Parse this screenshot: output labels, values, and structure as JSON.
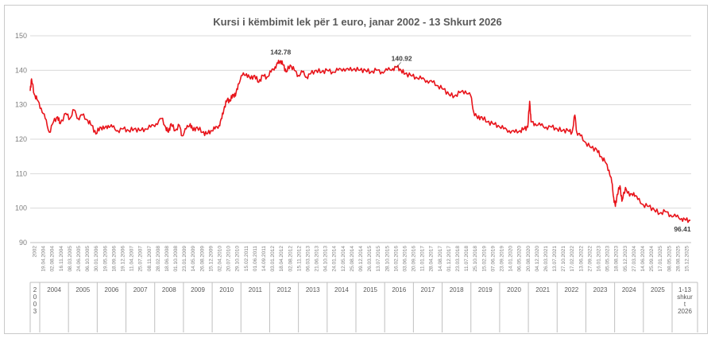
{
  "chart_data": {
    "type": "line",
    "title": "Kursi i këmbimit lek për 1 euro, janar 2002 - 13 Shkurt 2026",
    "xlabel": "",
    "ylabel": "",
    "ylim": [
      90,
      150
    ],
    "yticks": [
      90,
      100,
      110,
      120,
      130,
      140,
      150
    ],
    "grid": true,
    "series_color": "#e8141b",
    "x_tick_labels": [
      "2002",
      "19.04.2004",
      "02.08.2004",
      "16.11.2004",
      "08.03.2005",
      "24.06.2005",
      "06.10.2005",
      "30.01.2006",
      "19.05.2006",
      "18.09.2006",
      "19.12.2006",
      "11.04.2007",
      "25.07.2007",
      "08.11.2007",
      "28.02.2008",
      "18.06.2008",
      "01.10.2008",
      "23.01.2009",
      "14.05.2009",
      "26.08.2009",
      "15.12.2009",
      "02.04.2010",
      "20.07.2010",
      "29.10.2010",
      "15.02.2011",
      "01.06.2011",
      "14.09.2011",
      "03.01.2012",
      "18.04.2012",
      "02.08.2012",
      "15.11.2012",
      "06.03.2013",
      "21.06.2013",
      "04.10.2013",
      "24.01.2014",
      "12.05.2014",
      "25.08.2014",
      "09.12.2014",
      "26.03.2015",
      "13.07.2015",
      "28.10.2015",
      "16.02.2016",
      "03.06.2016",
      "20.09.2016",
      "11.01.2017",
      "28.04.2017",
      "14.08.2017",
      "01.12.2017",
      "23.03.2018",
      "11.07.2018",
      "25.10.2018",
      "15.02.2019",
      "07.06.2019",
      "23.09.2019",
      "14.01.2020",
      "06.05.2020",
      "20.08.2020",
      "04.12.2020",
      "26.03.2021",
      "13.07.2021",
      "27.10.2021",
      "17.02.2022",
      "13.06.2022",
      "27.09.2022",
      "16.01.2023",
      "05.05.2023",
      "18.08.2023",
      "05.12.2023",
      "27.03.2024",
      "14.06.2024",
      "25.09.2024",
      "17.01.2025",
      "08.05.2025",
      "28.08.2025",
      "15.12.2025"
    ],
    "year_groups": [
      "2\n0\n0\n3",
      "2004",
      "2005",
      "2006",
      "2007",
      "2008",
      "2009",
      "2010",
      "2011",
      "2012",
      "2013",
      "2014",
      "2015",
      "2016",
      "2017",
      "2018",
      "2019",
      "2020",
      "2021",
      "2022",
      "2023",
      "2024",
      "2025",
      "1-13\nshkur\nt\n2026"
    ],
    "annotations": [
      {
        "text": "142.78",
        "x": "2011",
        "y": 142.78
      },
      {
        "text": "140.92",
        "x": "2015",
        "y": 140.92
      },
      {
        "text": "96.41",
        "x": "2026",
        "y": 96.41
      }
    ],
    "series": [
      {
        "name": "",
        "points": [
          [
            2002.0,
            134.0
          ],
          [
            2002.05,
            137.5
          ],
          [
            2002.15,
            133.0
          ],
          [
            2002.25,
            131.5
          ],
          [
            2002.4,
            129.0
          ],
          [
            2002.55,
            126.0
          ],
          [
            2002.7,
            122.0
          ],
          [
            2002.85,
            125.0
          ],
          [
            2003.0,
            126.5
          ],
          [
            2003.1,
            124.5
          ],
          [
            2003.3,
            127.5
          ],
          [
            2003.45,
            126.0
          ],
          [
            2003.6,
            128.5
          ],
          [
            2003.75,
            126.0
          ],
          [
            2003.9,
            127.0
          ],
          [
            2004.1,
            125.5
          ],
          [
            2004.25,
            124.0
          ],
          [
            2004.4,
            121.5
          ],
          [
            2004.55,
            123.5
          ],
          [
            2004.7,
            123.0
          ],
          [
            2004.85,
            124.0
          ],
          [
            2005.0,
            123.5
          ],
          [
            2005.2,
            122.5
          ],
          [
            2005.4,
            123.0
          ],
          [
            2005.6,
            122.5
          ],
          [
            2005.8,
            123.0
          ],
          [
            2006.0,
            122.5
          ],
          [
            2006.2,
            123.0
          ],
          [
            2006.4,
            123.5
          ],
          [
            2006.6,
            124.5
          ],
          [
            2006.8,
            126.0
          ],
          [
            2006.95,
            123.5
          ],
          [
            2007.05,
            122.0
          ],
          [
            2007.15,
            124.5
          ],
          [
            2007.3,
            122.5
          ],
          [
            2007.45,
            124.0
          ],
          [
            2007.55,
            121.0
          ],
          [
            2007.7,
            123.0
          ],
          [
            2007.85,
            124.5
          ],
          [
            2007.95,
            122.5
          ],
          [
            2008.1,
            123.5
          ],
          [
            2008.3,
            122.0
          ],
          [
            2008.45,
            121.5
          ],
          [
            2008.6,
            122.5
          ],
          [
            2008.75,
            123.0
          ],
          [
            2008.9,
            124.0
          ],
          [
            2009.0,
            126.0
          ],
          [
            2009.1,
            129.5
          ],
          [
            2009.2,
            131.5
          ],
          [
            2009.3,
            131.0
          ],
          [
            2009.4,
            133.0
          ],
          [
            2009.5,
            132.5
          ],
          [
            2009.6,
            136.0
          ],
          [
            2009.75,
            138.5
          ],
          [
            2009.9,
            139.0
          ],
          [
            2010.05,
            137.5
          ],
          [
            2010.2,
            138.5
          ],
          [
            2010.35,
            136.5
          ],
          [
            2010.5,
            138.5
          ],
          [
            2010.65,
            138.0
          ],
          [
            2010.8,
            139.5
          ],
          [
            2010.95,
            141.0
          ],
          [
            2011.05,
            142.0
          ],
          [
            2011.15,
            142.78
          ],
          [
            2011.25,
            141.5
          ],
          [
            2011.35,
            139.5
          ],
          [
            2011.5,
            141.5
          ],
          [
            2011.65,
            140.0
          ],
          [
            2011.8,
            138.5
          ],
          [
            2011.95,
            139.5
          ],
          [
            2012.1,
            138.0
          ],
          [
            2012.25,
            139.0
          ],
          [
            2012.45,
            140.0
          ],
          [
            2012.65,
            139.5
          ],
          [
            2012.85,
            140.0
          ],
          [
            2013.05,
            139.5
          ],
          [
            2013.25,
            140.0
          ],
          [
            2013.45,
            140.5
          ],
          [
            2013.65,
            140.0
          ],
          [
            2013.85,
            140.5
          ],
          [
            2014.05,
            140.0
          ],
          [
            2014.25,
            140.0
          ],
          [
            2014.45,
            139.5
          ],
          [
            2014.65,
            140.0
          ],
          [
            2014.85,
            139.5
          ],
          [
            2015.05,
            140.0
          ],
          [
            2015.25,
            140.5
          ],
          [
            2015.4,
            140.92
          ],
          [
            2015.55,
            140.0
          ],
          [
            2015.7,
            139.0
          ],
          [
            2015.9,
            138.5
          ],
          [
            2016.1,
            138.0
          ],
          [
            2016.3,
            137.5
          ],
          [
            2016.5,
            137.0
          ],
          [
            2016.7,
            136.5
          ],
          [
            2016.9,
            135.5
          ],
          [
            2017.1,
            134.5
          ],
          [
            2017.3,
            133.0
          ],
          [
            2017.5,
            132.5
          ],
          [
            2017.7,
            133.5
          ],
          [
            2017.9,
            134.0
          ],
          [
            2018.1,
            132.5
          ],
          [
            2018.2,
            128.0
          ],
          [
            2018.35,
            126.0
          ],
          [
            2018.5,
            126.5
          ],
          [
            2018.7,
            125.0
          ],
          [
            2018.9,
            124.5
          ],
          [
            2019.1,
            124.0
          ],
          [
            2019.3,
            123.0
          ],
          [
            2019.5,
            122.5
          ],
          [
            2019.7,
            122.0
          ],
          [
            2019.9,
            122.5
          ],
          [
            2020.05,
            123.0
          ],
          [
            2020.18,
            123.5
          ],
          [
            2020.25,
            131.0
          ],
          [
            2020.3,
            125.0
          ],
          [
            2020.45,
            124.5
          ],
          [
            2020.65,
            124.0
          ],
          [
            2020.85,
            123.5
          ],
          [
            2021.05,
            123.5
          ],
          [
            2021.25,
            123.0
          ],
          [
            2021.45,
            122.5
          ],
          [
            2021.65,
            122.5
          ],
          [
            2021.8,
            122.0
          ],
          [
            2021.9,
            127.0
          ],
          [
            2021.97,
            122.0
          ],
          [
            2022.1,
            121.0
          ],
          [
            2022.3,
            119.0
          ],
          [
            2022.5,
            117.5
          ],
          [
            2022.7,
            117.0
          ],
          [
            2022.85,
            115.0
          ],
          [
            2023.0,
            113.5
          ],
          [
            2023.15,
            111.0
          ],
          [
            2023.25,
            107.5
          ],
          [
            2023.32,
            103.0
          ],
          [
            2023.38,
            100.5
          ],
          [
            2023.45,
            104.0
          ],
          [
            2023.55,
            106.5
          ],
          [
            2023.62,
            102.0
          ],
          [
            2023.75,
            106.0
          ],
          [
            2023.9,
            103.5
          ],
          [
            2024.05,
            104.5
          ],
          [
            2024.2,
            102.5
          ],
          [
            2024.4,
            101.0
          ],
          [
            2024.6,
            100.5
          ],
          [
            2024.8,
            99.5
          ],
          [
            2025.0,
            98.5
          ],
          [
            2025.2,
            99.0
          ],
          [
            2025.4,
            98.0
          ],
          [
            2025.6,
            97.5
          ],
          [
            2025.8,
            97.0
          ],
          [
            2025.95,
            96.5
          ],
          [
            2026.12,
            96.41
          ]
        ]
      }
    ]
  }
}
